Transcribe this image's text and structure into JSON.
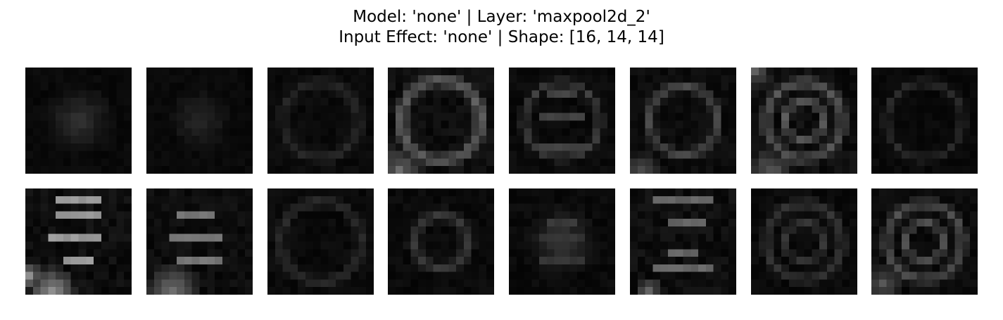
{
  "figure": {
    "title_line1": "Model: 'none' | Layer: 'maxpool2d_2'",
    "title_line2": "Input Effect: 'none' | Shape: [16, 14, 14]"
  },
  "feature_maps": {
    "channels": 16,
    "height": 14,
    "width": 14,
    "rows": 2,
    "cols": 8,
    "colormap": "gray",
    "background": "#000000"
  }
}
